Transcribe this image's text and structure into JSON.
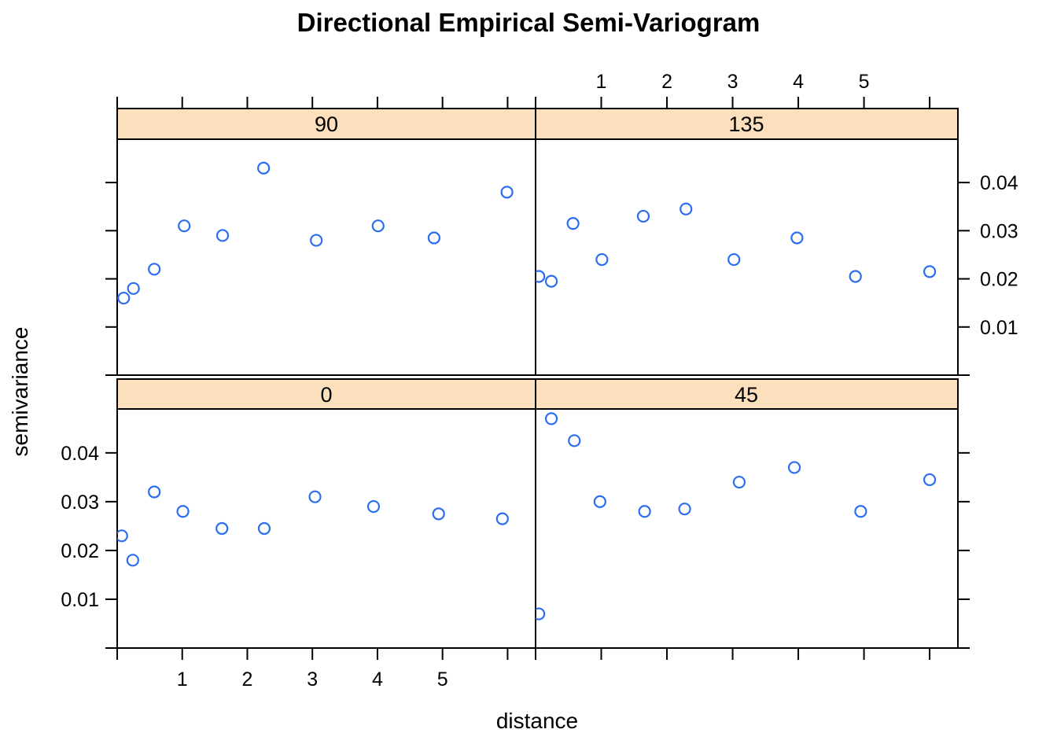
{
  "title": "Directional Empirical Semi-Variogram",
  "xlabel": "distance",
  "ylabel": "semivariance",
  "colors": {
    "point": "#2a6df2",
    "strip_bg": "#fcdfbc",
    "panel_bg": "#ffffff",
    "border": "#000000",
    "text": "#000000"
  },
  "axes": {
    "x": {
      "domain": [
        0,
        6.43
      ],
      "ticks": [
        0,
        1,
        2,
        3,
        4,
        5,
        6
      ],
      "tick_labels": [
        "",
        "1",
        "2",
        "3",
        "4",
        "5",
        ""
      ]
    },
    "y": {
      "domain": [
        0,
        0.049
      ],
      "ticks": [
        0,
        0.01,
        0.02,
        0.03,
        0.04
      ],
      "tick_labels": [
        "",
        "0.01",
        "0.02",
        "0.03",
        "0.04"
      ]
    }
  },
  "chart_data": {
    "type": "scatter",
    "title": "Directional Empirical Semi-Variogram",
    "xlabel": "distance",
    "ylabel": "semivariance",
    "xlim": [
      0,
      6.43
    ],
    "ylim": [
      0,
      0.049
    ],
    "grid": "off",
    "legend": "none",
    "marker": "open-circle",
    "panels": [
      {
        "strip": "90",
        "position": "top-left",
        "points": [
          [
            0.1,
            0.016
          ],
          [
            0.25,
            0.018
          ],
          [
            0.57,
            0.022
          ],
          [
            1.03,
            0.031
          ],
          [
            1.62,
            0.029
          ],
          [
            2.25,
            0.043
          ],
          [
            3.06,
            0.028
          ],
          [
            4.01,
            0.031
          ],
          [
            4.87,
            0.0285
          ],
          [
            5.99,
            0.038
          ]
        ]
      },
      {
        "strip": "135",
        "position": "top-right",
        "points": [
          [
            0.05,
            0.0205
          ],
          [
            0.24,
            0.0195
          ],
          [
            0.57,
            0.0315
          ],
          [
            1.01,
            0.024
          ],
          [
            1.64,
            0.033
          ],
          [
            2.29,
            0.0345
          ],
          [
            3.02,
            0.024
          ],
          [
            3.98,
            0.0285
          ],
          [
            4.87,
            0.0205
          ],
          [
            6.0,
            0.0215
          ]
        ]
      },
      {
        "strip": "0",
        "position": "bottom-left",
        "points": [
          [
            0.07,
            0.023
          ],
          [
            0.24,
            0.018
          ],
          [
            0.57,
            0.032
          ],
          [
            1.01,
            0.028
          ],
          [
            1.61,
            0.0245
          ],
          [
            2.26,
            0.0245
          ],
          [
            3.04,
            0.031
          ],
          [
            3.94,
            0.029
          ],
          [
            4.94,
            0.0275
          ],
          [
            5.92,
            0.0265
          ]
        ]
      },
      {
        "strip": "45",
        "position": "bottom-right",
        "points": [
          [
            0.05,
            0.007
          ],
          [
            0.24,
            0.047
          ],
          [
            0.59,
            0.0425
          ],
          [
            0.98,
            0.03
          ],
          [
            1.66,
            0.028
          ],
          [
            2.27,
            0.0285
          ],
          [
            3.1,
            0.034
          ],
          [
            3.94,
            0.037
          ],
          [
            4.95,
            0.028
          ],
          [
            6.0,
            0.0345
          ]
        ]
      }
    ]
  }
}
